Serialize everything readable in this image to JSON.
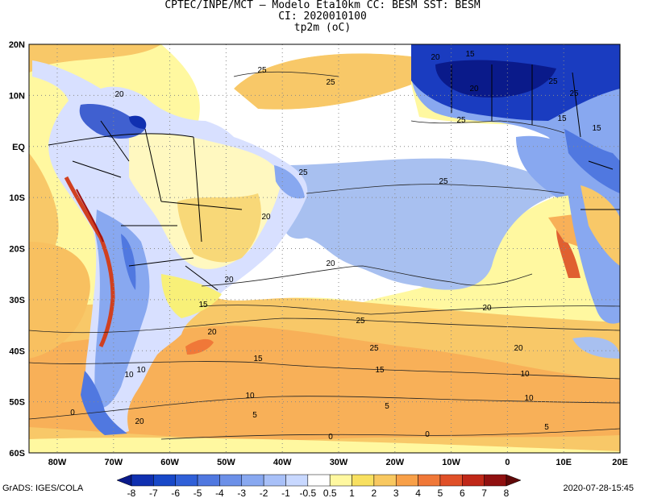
{
  "title": {
    "line1": "CPTEC/INPE/MCT –  Modelo Eta10km CC: BESM SST: BESM",
    "line2": "CI: 2020010100",
    "line3": "tp2m (oC)"
  },
  "map": {
    "lat_labels": [
      "20N",
      "10N",
      "EQ",
      "10S",
      "20S",
      "30S",
      "40S",
      "50S",
      "60S"
    ],
    "lon_labels": [
      "80W",
      "70W",
      "60W",
      "50W",
      "40W",
      "30W",
      "20W",
      "10W",
      "0",
      "10E",
      "20E"
    ],
    "contour_labels": [
      "25",
      "25",
      "25",
      "20",
      "15",
      "20",
      "25",
      "25",
      "15",
      "15",
      "25",
      "20",
      "25",
      "20",
      "20",
      "25",
      "20",
      "25",
      "20",
      "15",
      "15",
      "10",
      "10",
      "10",
      "5",
      "5",
      "5",
      "0",
      "0",
      "0",
      "10",
      "20",
      "10",
      "15",
      "20",
      "20"
    ],
    "colors": {
      "ocean_warm": "#f8f078",
      "ocean_orange": "#f8c868",
      "ocean_white": "#ffffff",
      "ocean_blue": "#a8c0f0",
      "land_blue": "#6888e0",
      "deep_blue": "#1030b0",
      "red": "#e04020",
      "dark_red": "#a01010"
    }
  },
  "legend": {
    "labels": [
      "-8",
      "-7",
      "-6",
      "-5",
      "-4",
      "-3",
      "-2",
      "-1",
      "-0.5",
      "0.5",
      "1",
      "2",
      "3",
      "4",
      "5",
      "6",
      "7",
      "8"
    ],
    "colors": [
      "#0a1a8a",
      "#1030b0",
      "#1848c8",
      "#3060d8",
      "#5078e0",
      "#6c90e8",
      "#88a8f0",
      "#a8c0f8",
      "#c8d8ff",
      "#ffffff",
      "#fff8a0",
      "#f8e060",
      "#f8c860",
      "#f8a048",
      "#f07838",
      "#e05028",
      "#c02818",
      "#901010",
      "#600808"
    ]
  },
  "footer": {
    "left": "GrADS: IGES/COLA",
    "right": "2020-07-28-15:45"
  }
}
